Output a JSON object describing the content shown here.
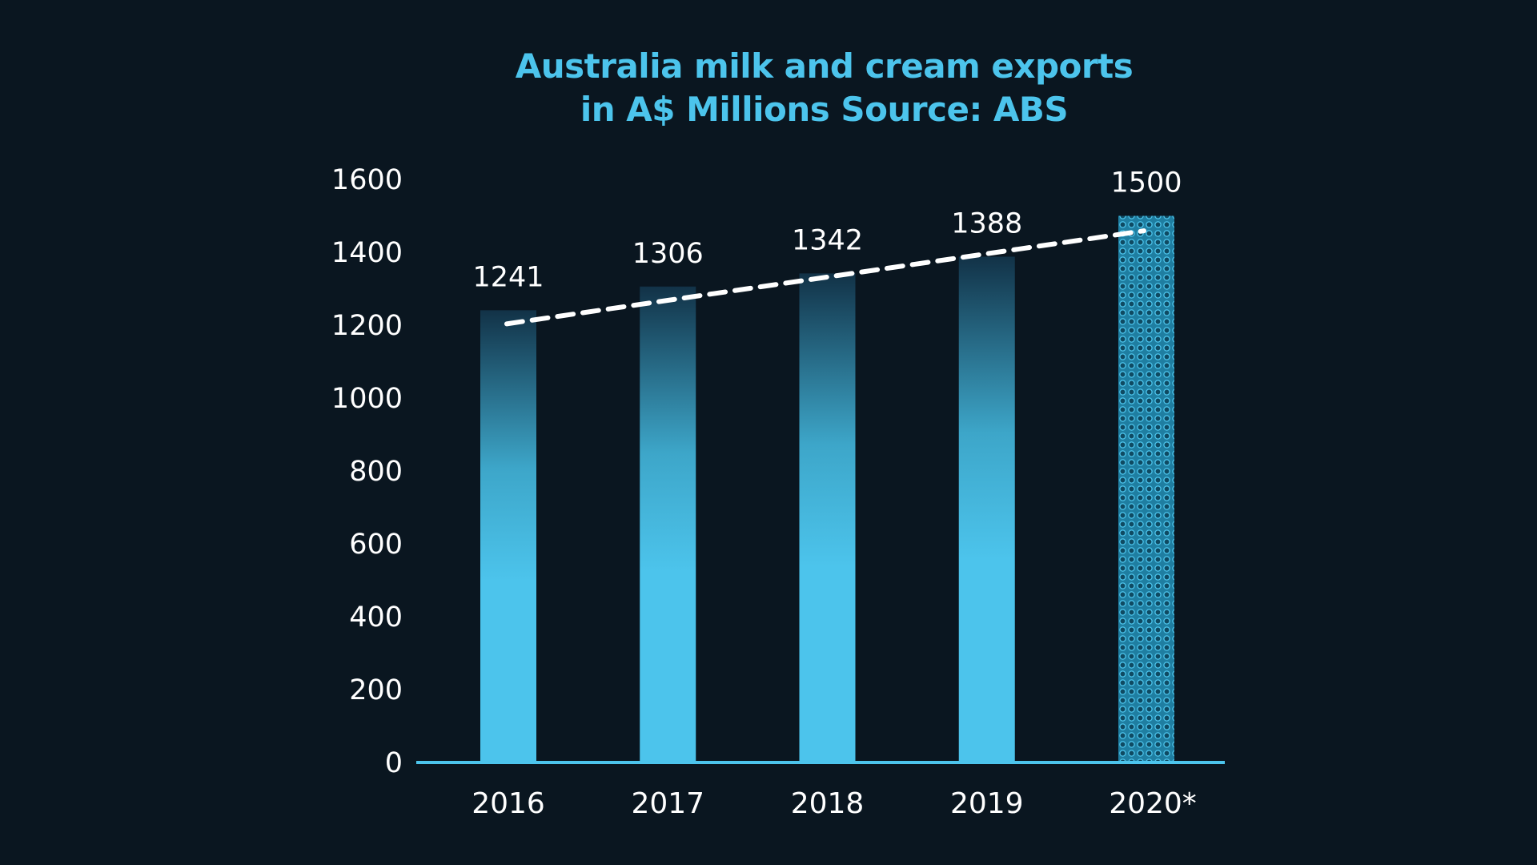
{
  "chart_data": {
    "type": "bar",
    "title_line_1": "Australia milk and cream exports",
    "title_line_2": "in A$ Millions Source: ABS",
    "categories": [
      "2016",
      "2017",
      "2018",
      "2019",
      "2020*"
    ],
    "values": [
      1241,
      1306,
      1342,
      1388,
      1500
    ],
    "value_labels": [
      "1241",
      "1306",
      "1342",
      "1388",
      "1500"
    ],
    "y_ticks": [
      "0",
      "200",
      "400",
      "600",
      "800",
      "1000",
      "1200",
      "1400",
      "1600"
    ],
    "ylim": [
      0,
      1600
    ],
    "xlabel": "",
    "ylabel": "",
    "grid": false,
    "trendline": {
      "style": "dashed",
      "start": 1230,
      "end": 1470
    },
    "colors": {
      "background": "#0a1620",
      "bar": "#4cc4ec",
      "bar_top_shade": "#0d2a3c",
      "title": "#4cc4ec",
      "text": "#ffffff",
      "trendline": "#ffffff"
    }
  }
}
